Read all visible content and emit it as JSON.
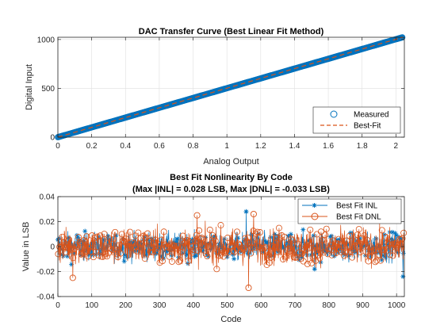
{
  "colors": {
    "blue": "#0072bd",
    "orange": "#d95319",
    "grid": "#dfdfdf",
    "axis": "#262626"
  },
  "chart_data": [
    {
      "type": "line",
      "title": "DAC Transfer Curve (Best Linear Fit Method)",
      "xlabel": "Analog Output",
      "ylabel": "Digital Input",
      "xlim": [
        0,
        2.05
      ],
      "ylim": [
        0,
        1023
      ],
      "xticks": [
        0,
        0.2,
        0.4,
        0.6,
        0.8,
        1,
        1.2,
        1.4,
        1.6,
        1.8,
        2
      ],
      "xtick_labels": [
        "0",
        "0.2",
        "0.4",
        "0.6",
        "0.8",
        "1",
        "1.2",
        "1.4",
        "1.6",
        "1.8",
        "2"
      ],
      "yticks": [
        0,
        500,
        1000
      ],
      "ytick_labels": [
        "0",
        "500",
        "1000"
      ],
      "grid": true,
      "legend_position": "bottom-right",
      "series": [
        {
          "name": "Measured",
          "style": "circle-markers",
          "color": "#0072bd",
          "x_start": 0.0,
          "x_end": 2.04,
          "y_start": 0,
          "y_end": 1023,
          "points": 1024
        },
        {
          "name": "Best-Fit",
          "style": "dashed-line",
          "color": "#d95319",
          "x": [
            0,
            2.04
          ],
          "y": [
            0,
            1023
          ]
        }
      ]
    },
    {
      "type": "line",
      "title": "Best Fit Nonlinearity By Code",
      "subtitle": "(Max |INL| = 0.028 LSB, Max |DNL| = -0.033 LSB)",
      "xlabel": "Code",
      "ylabel": "Value in LSB",
      "xlim": [
        0,
        1023
      ],
      "ylim": [
        -0.04,
        0.04
      ],
      "xticks": [
        0,
        100,
        200,
        300,
        400,
        500,
        600,
        700,
        800,
        900,
        1000
      ],
      "xtick_labels": [
        "0",
        "100",
        "200",
        "300",
        "400",
        "500",
        "600",
        "700",
        "800",
        "900",
        "1000"
      ],
      "yticks": [
        -0.04,
        -0.02,
        0,
        0.02,
        0.04
      ],
      "ytick_labels": [
        "-0.04",
        "-0.02",
        "0",
        "0.02",
        "0.04"
      ],
      "grid": true,
      "legend_position": "top-right",
      "series": [
        {
          "name": "Best Fit INL",
          "style": "line-asterisk",
          "color": "#0072bd",
          "codes": [
            0,
            1023
          ],
          "typical_spread": 0.01,
          "max_abs": 0.028,
          "peaks": [
            {
              "code": 556,
              "value": 0.028
            },
            {
              "code": 1019,
              "value": -0.024
            },
            {
              "code": 758,
              "value": -0.018
            }
          ]
        },
        {
          "name": "Best Fit DNL",
          "style": "line-circle",
          "color": "#d95319",
          "codes": [
            0,
            1023
          ],
          "typical_spread": 0.013,
          "max_abs": -0.033,
          "peaks": [
            {
              "code": 563,
              "value": -0.033
            },
            {
              "code": 578,
              "value": 0.026
            },
            {
              "code": 411,
              "value": 0.025
            },
            {
              "code": 44,
              "value": -0.025
            }
          ]
        }
      ]
    }
  ]
}
